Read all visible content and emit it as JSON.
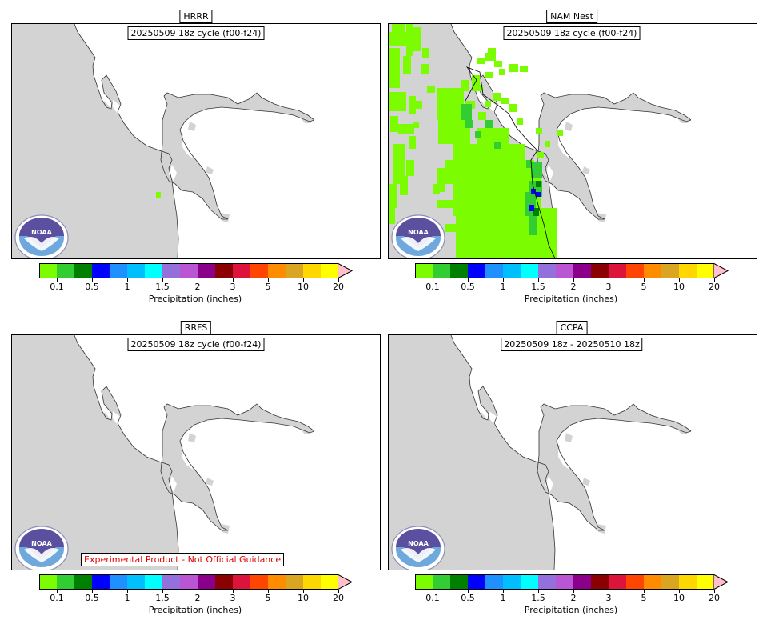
{
  "panels": [
    {
      "id": "hrrr",
      "title": "HRRR",
      "cycle": "20250509 18z cycle (f00-f24)",
      "precip": "hrrr"
    },
    {
      "id": "namnest",
      "title": "NAM Nest",
      "cycle": "20250509 18z cycle (f00-f24)",
      "precip": "nam"
    },
    {
      "id": "rrfs",
      "title": "RRFS",
      "cycle": "20250509 18z cycle (f00-f24)",
      "precip": "none",
      "disclaimer": "Experimental Product - Not Official Guidance"
    },
    {
      "id": "ccpa",
      "title": "CCPA",
      "cycle": "20250509 18z - 20250510 18z",
      "precip": "none"
    }
  ],
  "logo_text": "NOAA",
  "colorbar": {
    "label": "Precipitation (inches)",
    "tick_labels": [
      "0.1",
      "0.5",
      "1",
      "1.5",
      "2",
      "3",
      "5",
      "10",
      "20"
    ],
    "colors": [
      "#7cfc00",
      "#32cd32",
      "#008000",
      "#0000ff",
      "#1e90ff",
      "#00bfff",
      "#00ffff",
      "#9370db",
      "#ba55d3",
      "#8b008b",
      "#8b0000",
      "#dc143c",
      "#ff4500",
      "#ff8c00",
      "#daa520",
      "#ffd700",
      "#ffff00"
    ],
    "extend_color": "#ffc0cb"
  },
  "map_colors": {
    "land": "#d3d3d3",
    "water": "#ffffff",
    "coast": "#333333"
  }
}
